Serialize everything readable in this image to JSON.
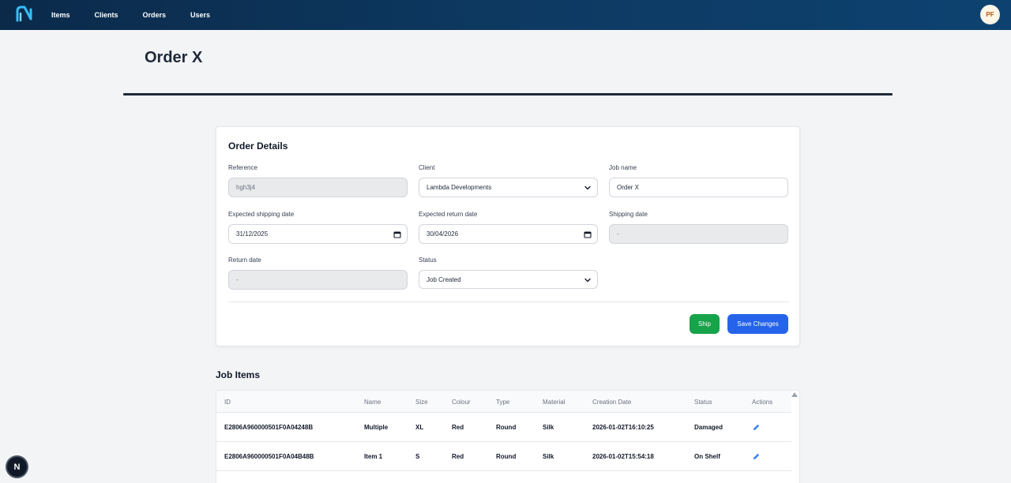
{
  "nav": {
    "items": [
      {
        "label": "Items"
      },
      {
        "label": "Clients"
      },
      {
        "label": "Orders"
      },
      {
        "label": "Users"
      }
    ],
    "avatar_initials": "PF",
    "logo_icon": "brand-logo-icon"
  },
  "page": {
    "title": "Order X"
  },
  "order_details": {
    "title": "Order Details",
    "fields": {
      "reference": {
        "label": "Reference",
        "value": "hgh3j4"
      },
      "client": {
        "label": "Client",
        "value": "Lambda Developments"
      },
      "job_name": {
        "label": "Job name",
        "value": "Order X"
      },
      "expected_shipping_date": {
        "label": "Expected shipping date",
        "value": "31/12/2025"
      },
      "expected_return_date": {
        "label": "Expected return date",
        "value": "30/04/2026"
      },
      "shipping_date": {
        "label": "Shipping date",
        "value": "-"
      },
      "return_date": {
        "label": "Return date",
        "value": "-"
      },
      "status": {
        "label": "Status",
        "value": "Job Created"
      }
    },
    "buttons": {
      "ship": "Ship",
      "save": "Save Changes"
    },
    "colors": {
      "ship": "#16a34a",
      "save": "#2563eb"
    }
  },
  "job_items": {
    "title": "Job Items",
    "columns": [
      "ID",
      "Name",
      "Size",
      "Colour",
      "Type",
      "Material",
      "Creation Date",
      "Status",
      "Actions"
    ],
    "rows": [
      {
        "id": "E2806A960000501F0A04248B",
        "name": "Multiple",
        "size": "XL",
        "colour": "Red",
        "type": "Round",
        "material": "Silk",
        "creation_date": "2026-01-02T16:10:25",
        "status": "Damaged"
      },
      {
        "id": "E2806A960000501F0A04B48B",
        "name": "Item 1",
        "size": "S",
        "colour": "Red",
        "type": "Round",
        "material": "Silk",
        "creation_date": "2026-01-02T15:54:18",
        "status": "On Shelf"
      }
    ]
  },
  "dev_badge": "N"
}
